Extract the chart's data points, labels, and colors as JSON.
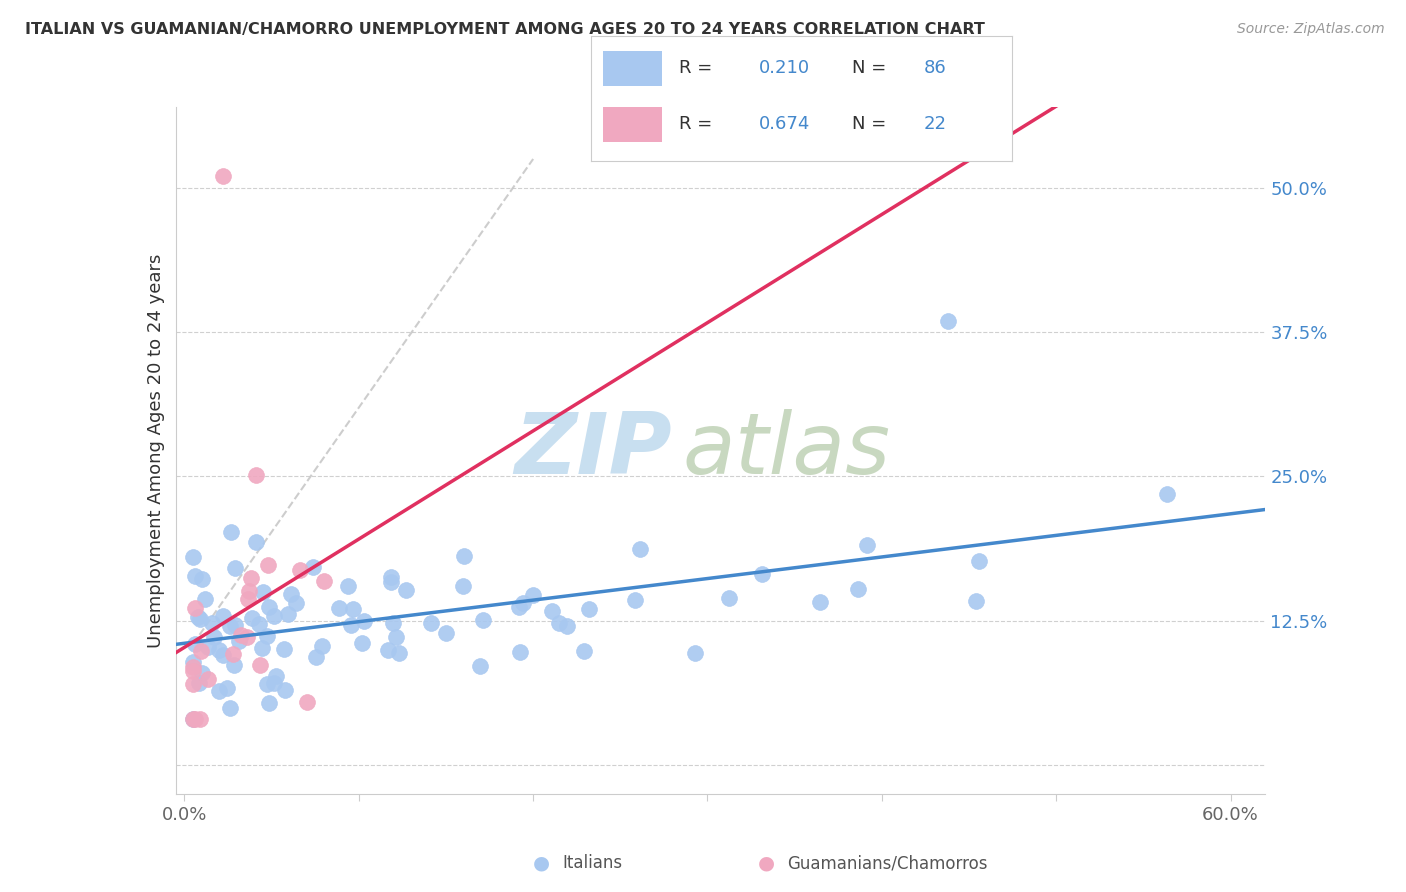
{
  "title": "ITALIAN VS GUAMANIAN/CHAMORRO UNEMPLOYMENT AMONG AGES 20 TO 24 YEARS CORRELATION CHART",
  "source": "Source: ZipAtlas.com",
  "ylabel": "Unemployment Among Ages 20 to 24 years",
  "legend_label_italians": "Italians",
  "legend_label_guam": "Guamanians/Chamorros",
  "R_italian": 0.21,
  "N_italian": 86,
  "R_guam": 0.674,
  "N_guam": 22,
  "xlim": [
    0.0,
    0.6
  ],
  "ylim": [
    -0.025,
    0.57
  ],
  "color_italian": "#a8c8f0",
  "color_guam": "#f0a8c0",
  "color_italian_line": "#4488cc",
  "color_guam_line": "#e03060",
  "color_grid": "#d0d0d0",
  "color_dashed": "#c8c8c8",
  "watermark_zip_color": "#c8dff0",
  "watermark_atlas_color": "#c8d8c0"
}
